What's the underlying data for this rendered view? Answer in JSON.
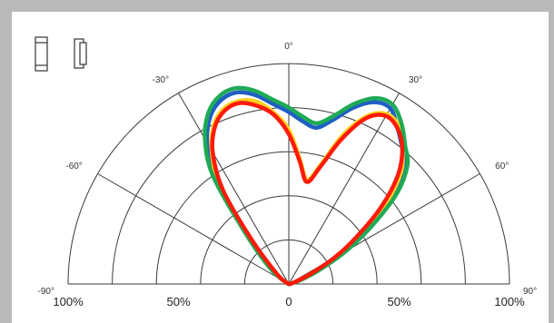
{
  "chart_data": {
    "type": "polar",
    "angle_ticks": [
      {
        "value": -90,
        "label": "-90°"
      },
      {
        "value": -60,
        "label": "-60°"
      },
      {
        "value": -30,
        "label": "-30°"
      },
      {
        "value": 0,
        "label": "0°"
      },
      {
        "value": 30,
        "label": "30°"
      },
      {
        "value": 60,
        "label": "60°"
      },
      {
        "value": 90,
        "label": "90°"
      }
    ],
    "radial_ticks": [
      {
        "value": -100,
        "label": "100%"
      },
      {
        "value": -50,
        "label": "50%"
      },
      {
        "value": 0,
        "label": "0"
      },
      {
        "value": 50,
        "label": "50%"
      },
      {
        "value": 100,
        "label": "100%"
      }
    ],
    "radial_range": [
      0,
      100
    ],
    "grid_rings": [
      20,
      40,
      60,
      80,
      100
    ],
    "grid_spokes": [
      -90,
      -60,
      -30,
      0,
      30,
      60,
      90
    ],
    "series": [
      {
        "color": "#1f5fc4",
        "points": [
          [
            -60,
            1
          ],
          [
            -50,
            9
          ],
          [
            -40,
            30
          ],
          [
            -35,
            58
          ],
          [
            -30,
            74
          ],
          [
            -25,
            84
          ],
          [
            -20,
            89
          ],
          [
            -15,
            90
          ],
          [
            -10,
            87
          ],
          [
            -5,
            82
          ],
          [
            0,
            78
          ],
          [
            5,
            74
          ],
          [
            10,
            72
          ],
          [
            15,
            77
          ],
          [
            20,
            85
          ],
          [
            25,
            91
          ],
          [
            30,
            92
          ],
          [
            35,
            86
          ],
          [
            40,
            80
          ],
          [
            45,
            74
          ],
          [
            50,
            62
          ],
          [
            55,
            44
          ],
          [
            60,
            28
          ],
          [
            65,
            14
          ],
          [
            70,
            6
          ],
          [
            80,
            1
          ],
          [
            90,
            0
          ]
        ]
      },
      {
        "color": "#ffd21f",
        "points": [
          [
            -60,
            1
          ],
          [
            -50,
            8
          ],
          [
            -40,
            27
          ],
          [
            -35,
            54
          ],
          [
            -30,
            70
          ],
          [
            -25,
            80
          ],
          [
            -20,
            85
          ],
          [
            -15,
            86
          ],
          [
            -10,
            84
          ],
          [
            -5,
            78
          ],
          [
            0,
            70
          ],
          [
            5,
            57
          ],
          [
            10,
            48
          ],
          [
            15,
            56
          ],
          [
            20,
            72
          ],
          [
            25,
            84
          ],
          [
            30,
            89
          ],
          [
            35,
            87
          ],
          [
            40,
            80
          ],
          [
            45,
            72
          ],
          [
            50,
            58
          ],
          [
            55,
            40
          ],
          [
            60,
            25
          ],
          [
            65,
            12
          ],
          [
            70,
            5
          ],
          [
            80,
            1
          ],
          [
            90,
            0
          ]
        ]
      },
      {
        "color": "#1faa55",
        "points": [
          [
            -60,
            1
          ],
          [
            -50,
            11
          ],
          [
            -40,
            32
          ],
          [
            -35,
            60
          ],
          [
            -30,
            76
          ],
          [
            -25,
            86
          ],
          [
            -20,
            91
          ],
          [
            -15,
            92
          ],
          [
            -10,
            89
          ],
          [
            -5,
            84
          ],
          [
            0,
            80
          ],
          [
            5,
            76
          ],
          [
            10,
            74
          ],
          [
            15,
            79
          ],
          [
            20,
            87
          ],
          [
            25,
            93
          ],
          [
            30,
            94
          ],
          [
            35,
            89
          ],
          [
            40,
            82
          ],
          [
            45,
            76
          ],
          [
            50,
            64
          ],
          [
            55,
            46
          ],
          [
            60,
            30
          ],
          [
            65,
            16
          ],
          [
            70,
            7
          ],
          [
            80,
            1
          ],
          [
            90,
            0
          ]
        ]
      },
      {
        "color": "#ff1a0a",
        "points": [
          [
            -60,
            1
          ],
          [
            -50,
            7
          ],
          [
            -40,
            26
          ],
          [
            -35,
            52
          ],
          [
            -30,
            69
          ],
          [
            -25,
            79
          ],
          [
            -20,
            84
          ],
          [
            -15,
            85
          ],
          [
            -10,
            82
          ],
          [
            -5,
            77
          ],
          [
            0,
            68
          ],
          [
            5,
            56
          ],
          [
            10,
            47
          ],
          [
            15,
            55
          ],
          [
            20,
            70
          ],
          [
            25,
            83
          ],
          [
            30,
            88
          ],
          [
            35,
            86
          ],
          [
            40,
            80
          ],
          [
            45,
            70
          ],
          [
            50,
            55
          ],
          [
            55,
            38
          ],
          [
            60,
            24
          ],
          [
            65,
            11
          ],
          [
            70,
            4
          ],
          [
            80,
            1
          ],
          [
            90,
            0
          ]
        ]
      }
    ]
  },
  "icons": [
    "lamp-front-icon",
    "lamp-side-icon"
  ]
}
